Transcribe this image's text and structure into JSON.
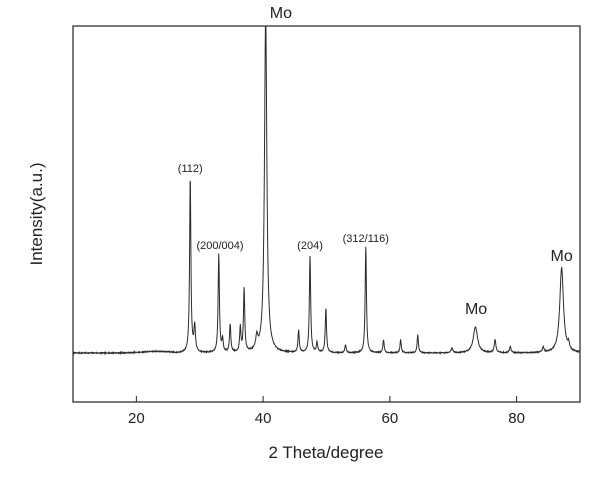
{
  "chart_data": {
    "type": "line",
    "title": "",
    "xlabel": "2 Theta/degree",
    "ylabel": "Intensity(a.u.)",
    "xlim": [
      10,
      90
    ],
    "x_ticks": [
      20,
      40,
      60,
      80
    ],
    "y_ticks_shown": false,
    "grid": false,
    "legend": "none",
    "line_color": "#2b2b2b",
    "baseline": 0.3,
    "peaks": [
      {
        "x": 28.5,
        "y": 17.5,
        "w": 0.12
      },
      {
        "x": 29.2,
        "y": 2.6,
        "w": 0.14
      },
      {
        "x": 33.0,
        "y": 9.8,
        "w": 0.12
      },
      {
        "x": 33.6,
        "y": 1.3,
        "w": 0.12
      },
      {
        "x": 34.8,
        "y": 2.8,
        "w": 0.12
      },
      {
        "x": 36.4,
        "y": 2.5,
        "w": 0.12
      },
      {
        "x": 37.0,
        "y": 6.3,
        "w": 0.12
      },
      {
        "x": 39.0,
        "y": 1.3,
        "w": 0.2
      },
      {
        "x": 40.4,
        "y": 34,
        "w": 0.22
      },
      {
        "x": 45.6,
        "y": 2.2,
        "w": 0.12
      },
      {
        "x": 47.4,
        "y": 9.6,
        "w": 0.12
      },
      {
        "x": 48.5,
        "y": 1.0,
        "w": 0.12
      },
      {
        "x": 49.9,
        "y": 4.4,
        "w": 0.12
      },
      {
        "x": 53.0,
        "y": 0.8,
        "w": 0.12
      },
      {
        "x": 56.2,
        "y": 10.6,
        "w": 0.12
      },
      {
        "x": 59.0,
        "y": 1.3,
        "w": 0.12
      },
      {
        "x": 61.7,
        "y": 1.3,
        "w": 0.12
      },
      {
        "x": 64.4,
        "y": 1.8,
        "w": 0.12
      },
      {
        "x": 69.8,
        "y": 0.5,
        "w": 0.15
      },
      {
        "x": 73.5,
        "y": 2.6,
        "w": 0.4
      },
      {
        "x": 76.6,
        "y": 1.3,
        "w": 0.15
      },
      {
        "x": 79.0,
        "y": 0.6,
        "w": 0.15
      },
      {
        "x": 84.2,
        "y": 0.5,
        "w": 0.15
      },
      {
        "x": 87.1,
        "y": 8.5,
        "w": 0.35
      },
      {
        "x": 88.2,
        "y": 0.6,
        "w": 0.15
      }
    ],
    "annotations": [
      {
        "text": "(112)",
        "x": 28.5,
        "y": 18.4
      },
      {
        "text": "(200/004)",
        "x": 33.2,
        "y": 10.7
      },
      {
        "text": "(204)",
        "x": 47.4,
        "y": 10.7
      },
      {
        "text": "(312/116)",
        "x": 56.2,
        "y": 11.4
      },
      {
        "text": "Mo",
        "x": 42.8,
        "y": 33.8
      },
      {
        "text": "Mo",
        "x": 73.6,
        "y": 4.2
      },
      {
        "text": "Mo",
        "x": 87.1,
        "y": 9.5
      }
    ]
  }
}
